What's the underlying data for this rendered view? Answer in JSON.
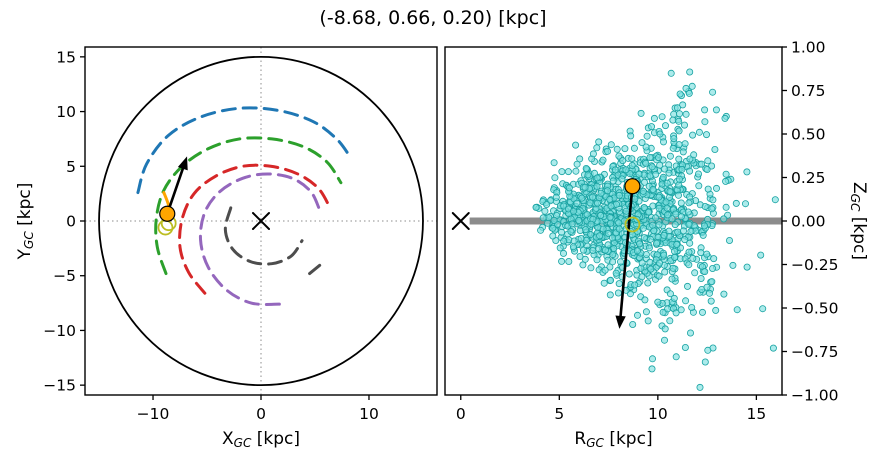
{
  "title": "(-8.68, 0.66, 0.20) [kpc]",
  "chart_data": {
    "type": "scatter",
    "title": "(-8.68, 0.66, 0.20) [kpc]",
    "panels": {
      "xy": {
        "xlabel": {
          "pre": "X",
          "sub": "GC",
          "post": " [kpc]"
        },
        "ylabel": {
          "pre": "Y",
          "sub": "GC",
          "post": " [kpc]"
        },
        "xlim": [
          -16.3,
          16.3
        ],
        "ylim": [
          -15.9,
          15.9
        ],
        "xticks": {
          "values": [
            -10,
            0,
            10
          ],
          "labels": [
            "−10",
            "0",
            "10"
          ]
        },
        "yticks": {
          "values": [
            15,
            10,
            5,
            0,
            -5,
            -10,
            -15
          ],
          "labels": [
            "15",
            "10",
            "5",
            "0",
            "−5",
            "−10",
            "−15"
          ]
        },
        "boundary_circle_r": 15,
        "origin": {
          "x": 0,
          "y": 0
        },
        "sun": {
          "x": -8.68,
          "y": 0.66
        },
        "arrow": {
          "x1": -8.68,
          "y1": 0.66,
          "x2": -6.85,
          "y2": 5.9
        },
        "open_circles": [
          {
            "x": -8.55,
            "y": -0.2
          },
          {
            "x": -8.85,
            "y": -0.6
          }
        ],
        "spiral_arms": [
          {
            "name": "arm-blue",
            "color": "#1f77b4",
            "points": [
              [
                -11.4,
                2.6
              ],
              [
                -10.6,
                5.2
              ],
              [
                -8.6,
                7.8
              ],
              [
                -5.6,
                9.5
              ],
              [
                -2,
                10.3
              ],
              [
                1.6,
                10.1
              ],
              [
                4.8,
                9.1
              ],
              [
                7,
                7.5
              ],
              [
                8.3,
                5.8
              ]
            ]
          },
          {
            "name": "arm-green",
            "color": "#2ca02c",
            "points": [
              [
                -8.8,
                -4.8
              ],
              [
                -9.6,
                -2.4
              ],
              [
                -9.7,
                0.2
              ],
              [
                -9,
                2.8
              ],
              [
                -7.3,
                5
              ],
              [
                -4.9,
                6.6
              ],
              [
                -2,
                7.5
              ],
              [
                1,
                7.5
              ],
              [
                3.9,
                6.8
              ],
              [
                6.1,
                5.4
              ],
              [
                7.4,
                3.5
              ]
            ]
          },
          {
            "name": "arm-red",
            "color": "#d62728",
            "points": [
              [
                -5.2,
                -6.6
              ],
              [
                -6.7,
                -4.7
              ],
              [
                -7.5,
                -2.4
              ],
              [
                -7.3,
                0.2
              ],
              [
                -6.2,
                2.5
              ],
              [
                -4.2,
                4.1
              ],
              [
                -1.7,
                5
              ],
              [
                0.9,
                5
              ],
              [
                3.4,
                4.3
              ],
              [
                5.3,
                3
              ],
              [
                6.4,
                1.2
              ]
            ]
          },
          {
            "name": "arm-purple",
            "color": "#9467bd",
            "points": [
              [
                1.7,
                -7.6
              ],
              [
                -0.9,
                -7.5
              ],
              [
                -3.2,
                -6.3
              ],
              [
                -4.9,
                -4.2
              ],
              [
                -5.6,
                -1.7
              ],
              [
                -5.2,
                0.8
              ],
              [
                -3.8,
                2.7
              ],
              [
                -1.7,
                3.9
              ],
              [
                0.6,
                4.3
              ],
              [
                2.9,
                3.9
              ],
              [
                4.6,
                2.7
              ],
              [
                5.4,
                1.1
              ]
            ]
          },
          {
            "name": "arm-gray",
            "color": "#4d4d4d",
            "points": [
              [
                -2.8,
                1.2
              ],
              [
                -3.3,
                -0.8
              ],
              [
                -2.6,
                -2.6
              ],
              [
                -1,
                -3.7
              ],
              [
                1,
                -3.9
              ],
              [
                2.8,
                -3.2
              ],
              [
                3.8,
                -1.8
              ]
            ]
          },
          {
            "name": "arm-gray-segment",
            "color": "#4d4d4d",
            "points": [
              [
                4.5,
                -4.8
              ],
              [
                5.5,
                -4
              ]
            ]
          },
          {
            "name": "arm-orange-local",
            "color": "#ffa500",
            "points": [
              [
                -9,
                2.6
              ],
              [
                -8.55,
                1.4
              ],
              [
                -8.45,
                0.3
              ]
            ]
          }
        ]
      },
      "rz": {
        "xlabel": {
          "pre": "R",
          "sub": "GC",
          "post": " [kpc]"
        },
        "ylabel": {
          "pre": "Z",
          "sub": "GC",
          "post": " [kpc]"
        },
        "xlim": [
          -0.8,
          16.3
        ],
        "ylim": [
          -1,
          1
        ],
        "xticks": {
          "values": [
            0,
            5,
            10,
            15
          ],
          "labels": [
            "0",
            "5",
            "10",
            "15"
          ]
        },
        "yticks": {
          "values": [
            1,
            0.75,
            0.5,
            0.25,
            0,
            -0.25,
            -0.5,
            -0.75,
            -1
          ],
          "labels": [
            "1.00",
            "0.75",
            "0.50",
            "0.25",
            "0.00",
            "−0.25",
            "−0.50",
            "−0.75",
            "−1.00"
          ]
        },
        "midplane_line": {
          "y": 0,
          "x_start": 0.45,
          "color": "#8c8c8c"
        },
        "origin": {
          "x": 0,
          "y": 0
        },
        "sun": {
          "x": 8.71,
          "y": 0.2
        },
        "open_circle": {
          "x": 8.71,
          "y": -0.02
        },
        "arrow": {
          "x1": 8.71,
          "y1": 0.2,
          "x2": 8.05,
          "y2": -0.62
        },
        "scatter": {
          "count": 1150,
          "seed": 20,
          "r_mean": 8.6,
          "r_sigma": 2.3,
          "r_min": 3.8,
          "r_max": 16.1,
          "z_mean": 0.04,
          "z_sigma_base": 0.05,
          "z_sigma_flare": 0.034,
          "fill": "#7fe0e0",
          "stroke": "#17a2a2",
          "opacity": 0.65
        }
      }
    },
    "colors": {
      "sun": "#ffa500",
      "sun_edge": "#000000",
      "open_circle": "#bcbd22",
      "arrow": "#000000",
      "frame": "#000000",
      "crosshair": "#8c8c8c"
    }
  }
}
